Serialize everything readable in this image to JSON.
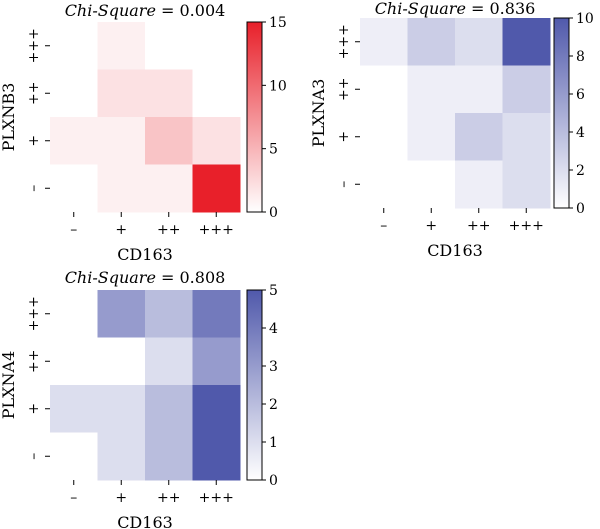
{
  "chart_data": [
    {
      "type": "heatmap",
      "title_prefix": "Chi-Square",
      "title_value": "= 0.004",
      "xlabel": "CD163",
      "ylabel": "PLXNB3",
      "x_categories": [
        "–",
        "+",
        "++",
        "+++"
      ],
      "y_categories": [
        "+++",
        "++",
        "+",
        "–"
      ],
      "values": [
        [
          0,
          1,
          0,
          0
        ],
        [
          0,
          2,
          2,
          0
        ],
        [
          1,
          1,
          4,
          2
        ],
        [
          0,
          1,
          1,
          15
        ]
      ],
      "colorbar": {
        "min": 0,
        "max": 15,
        "ticks": [
          0,
          5,
          10,
          15
        ],
        "low_color": "#ffffff",
        "high_color": "#e8202a"
      }
    },
    {
      "type": "heatmap",
      "title_prefix": "Chi-Square",
      "title_value": "= 0.836",
      "xlabel": "CD163",
      "ylabel": "PLXNA3",
      "x_categories": [
        "–",
        "+",
        "++",
        "+++"
      ],
      "y_categories": [
        "+++",
        "++",
        "+",
        "–"
      ],
      "values": [
        [
          1,
          3,
          2,
          10
        ],
        [
          0,
          1,
          1,
          3
        ],
        [
          0,
          1,
          3,
          2
        ],
        [
          0,
          0,
          1,
          2
        ]
      ],
      "colorbar": {
        "min": 0,
        "max": 10,
        "ticks": [
          0,
          2,
          4,
          6,
          8,
          10
        ],
        "low_color": "#ffffff",
        "high_color": "#5059ab"
      }
    },
    {
      "type": "heatmap",
      "title_prefix": "Chi-Square",
      "title_value": "= 0.808",
      "xlabel": "CD163",
      "ylabel": "PLXNA4",
      "x_categories": [
        "–",
        "+",
        "++",
        "+++"
      ],
      "y_categories": [
        "+++",
        "++",
        "+",
        "–"
      ],
      "values": [
        [
          0,
          3,
          2,
          4
        ],
        [
          0,
          0,
          1,
          3
        ],
        [
          1,
          1,
          2,
          5
        ],
        [
          0,
          1,
          2,
          5
        ]
      ],
      "colorbar": {
        "min": 0,
        "max": 5,
        "ticks": [
          0,
          1,
          2,
          3,
          4,
          5
        ],
        "low_color": "#ffffff",
        "high_color": "#5059ab"
      }
    }
  ]
}
